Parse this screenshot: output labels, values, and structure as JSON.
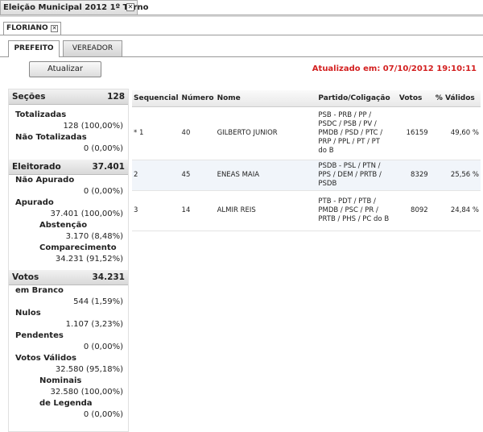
{
  "window_tab": {
    "title": "Eleição Municipal 2012 1º Turno"
  },
  "city_tab": {
    "label": "FLORIANO"
  },
  "tabs": [
    {
      "label": "PREFEITO"
    },
    {
      "label": "VEREADOR"
    }
  ],
  "toolbar": {
    "refresh_label": "Atualizar",
    "updated_text": "Atualizado em: 07/10/2012 19:10:11"
  },
  "summary": {
    "secoes": {
      "label": "Seções",
      "value": "128",
      "totalizadas_label": "Totalizadas",
      "totalizadas_value": "128 (100,00%)",
      "nao_totalizadas_label": "Não Totalizadas",
      "nao_totalizadas_value": "0 (0,00%)"
    },
    "eleitorado": {
      "label": "Eleitorado",
      "value": "37.401",
      "nao_apurado_label": "Não Apurado",
      "nao_apurado_value": "0 (0,00%)",
      "apurado_label": "Apurado",
      "apurado_value": "37.401 (100,00%)",
      "abstencao_label": "Abstenção",
      "abstencao_value": "3.170 (8,48%)",
      "comparecimento_label": "Comparecimento",
      "comparecimento_value": "34.231 (91,52%)"
    },
    "votos": {
      "label": "Votos",
      "value": "34.231",
      "branco_label": "em Branco",
      "branco_value": "544 (1,59%)",
      "nulos_label": "Nulos",
      "nulos_value": "1.107 (3,23%)",
      "pendentes_label": "Pendentes",
      "pendentes_value": "0 (0,00%)",
      "validos_label": "Votos Válidos",
      "validos_value": "32.580 (95,18%)",
      "nominais_label": "Nominais",
      "nominais_value": "32.580 (100,00%)",
      "legenda_label": "de Legenda",
      "legenda_value": "0 (0,00%)"
    }
  },
  "table": {
    "headers": [
      "Sequencial",
      "Número",
      "Nome",
      "Partido/Coligação",
      "Votos",
      "% Válidos"
    ],
    "rows": [
      {
        "seq": "* 1",
        "numero": "40",
        "nome": "GILBERTO JUNIOR",
        "partido": "PSB - PRB / PP / PSDC / PSB / PV / PMDB / PSD / PTC / PRP / PPL / PT / PT do B",
        "votos": "16159",
        "pct": "49,60 %"
      },
      {
        "seq": "2",
        "numero": "45",
        "nome": "ENEAS MAIA",
        "partido": "PSDB - PSL / PTN / PPS / DEM / PRTB / PSDB",
        "votos": "8329",
        "pct": "25,56 %"
      },
      {
        "seq": "3",
        "numero": "14",
        "nome": "ALMIR REIS",
        "partido": "PTB - PDT / PTB / PMDB / PSC / PR / PRTB / PHS / PC do B",
        "votos": "8092",
        "pct": "24,84 %"
      }
    ]
  }
}
